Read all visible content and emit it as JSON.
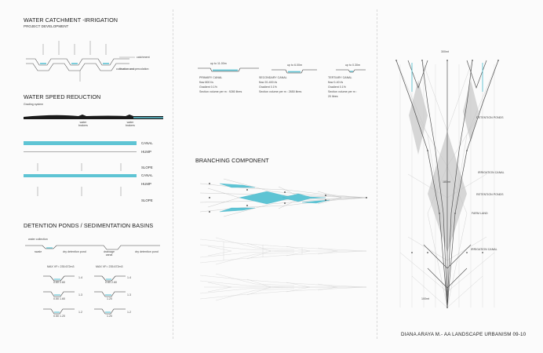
{
  "colors": {
    "water": "#5ec4d4",
    "water_dark": "#3fb0c4",
    "line": "#555555",
    "light_line": "#b5b5b5",
    "fill_grey": "#d8d8d8"
  },
  "left": {
    "title": "WATER CATCHMENT -IRRIGATION",
    "subtitle": "PROJECT DEVELOPMENT",
    "catchment_label": "catchment",
    "cultivation_label": "cultivation and percolation",
    "speed_title": "WATER SPEED REDUCTION",
    "grading_label": "Grading system",
    "water_brakers_1": "water brakers",
    "water_brakers_2": "water brakers",
    "canal_label_1": "CANAL",
    "hump_label_1": "HUMP",
    "slope_label_1": "SLOPE",
    "canal_label_2": "CANAL",
    "hump_label_2": "HUMP",
    "slope_label_2": "SLOPE",
    "ponds_title": "DETENTION PONDS / SEDIMENTATION BASINS",
    "water_collection": "water collection",
    "swale": "swale",
    "dry_pond_1": "dry detention pond",
    "drainage_canal": "drainage canal",
    "dry_pond_2": "dry detention pond",
    "max_vf_1": "MAX VF= 235.672m3",
    "max_vf_2": "MAX VF= 235.672m3",
    "sections_left": [
      {
        "dims": "0.60    2.60",
        "h": "1.4"
      },
      {
        "dims": "0.50    1.60",
        "h": "1.3"
      },
      {
        "dims": "0.50    1.20",
        "h": "1.2"
      }
    ],
    "sections_right": [
      {
        "dims": "0.60    2.60",
        "h": "1.4"
      },
      {
        "dims": "1.20",
        "h": "1.3"
      },
      {
        "dims": "1.20",
        "h": "1.2"
      }
    ]
  },
  "middle": {
    "canals": [
      {
        "width": "up to 11.00m",
        "name": "PRIMARY CANAL",
        "flow": "flow 800 l/s",
        "gradient": "Gradient 0.1%",
        "volume": "Section volume per m : 9280 litres"
      },
      {
        "width": "up to 6.00m",
        "name": "SECONDARY CANAL",
        "flow": "flow 20-400 l/s",
        "gradient": "Gradient 0.1%",
        "volume": "Section volume per m : 2650 litres"
      },
      {
        "width": "up to 0.30m",
        "name": "TERTIARY CANAL",
        "flow": "flow 0-40 l/s",
        "gradient": "Gradient 0.1%",
        "volume": "Section volume per m :",
        "volume2": "20 litres"
      }
    ],
    "branching_title": "BRANCHING COMPONENT"
  },
  "right": {
    "top_width": "300mt",
    "detention_ponds": "DETENTION PONDS",
    "irrigation_canal_1": "IRRIGATION CANAL",
    "length": "180mt",
    "retention_ponds": "RETENTION PONDS",
    "farm_land": "FARM LAND",
    "irrigation_canal_2": "IRRIGATION CANAL",
    "bottom_width": "100mt"
  },
  "footer": "DIANA ARAYA M.- AA LANDSCAPE URBANISM 09-10"
}
